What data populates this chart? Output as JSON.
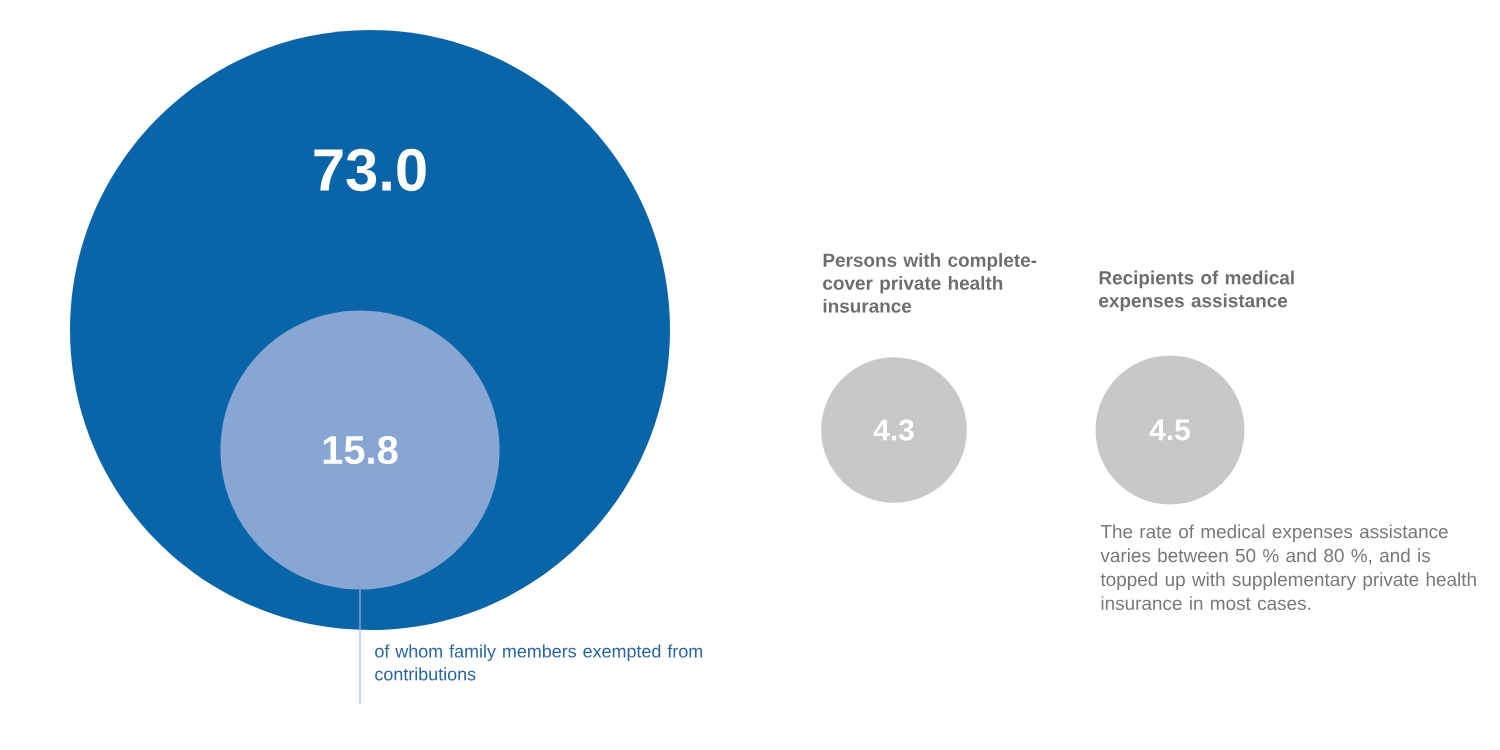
{
  "chart_data": {
    "type": "other",
    "categories": [
      null,
      "of whom family members exempted from contributions",
      "Persons with complete-cover private health insurance",
      "Recipients of medical expenses assistance"
    ],
    "values": [
      73.0,
      15.8,
      4.3,
      4.5
    ],
    "value_labels": [
      "73.0",
      "15.8",
      "4.3",
      "4.5"
    ],
    "colors": [
      "#0a64a8",
      "#87a6d4",
      "#c8c8c8",
      "#c8c8c8"
    ],
    "annotations": [
      "The rate of medical expenses assistance varies between 50 % and 80 %, and is topped up with supplementary private health insurance in most cases."
    ]
  }
}
